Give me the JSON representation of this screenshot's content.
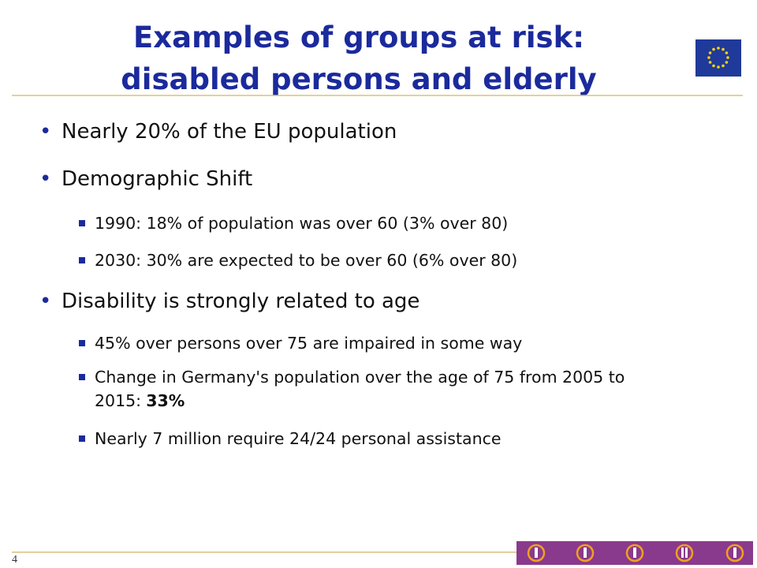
{
  "header": {
    "title_lines": [
      "Examples of groups at risk:",
      "disabled persons and elderly"
    ]
  },
  "bullets": [
    {
      "text": "Nearly 20% of the EU population",
      "sub": []
    },
    {
      "text": "Demographic Shift",
      "sub": [
        {
          "text": "1990: 18% of population was over 60 (3% over 80)"
        },
        {
          "text": "2030: 30% are expected to be over 60 (6% over 80)"
        }
      ]
    },
    {
      "text": "Disability is strongly related to age",
      "sub": [
        {
          "text": "45% over persons over 75 are impaired in some way"
        },
        {
          "text": "Change in Germany's population over the age of 75 from 2005 to 2015:",
          "emphasis": "33%"
        },
        {
          "text": "Nearly 7 million require 24/24 personal assistance"
        }
      ]
    }
  ],
  "footer": {
    "page_number": "4"
  }
}
